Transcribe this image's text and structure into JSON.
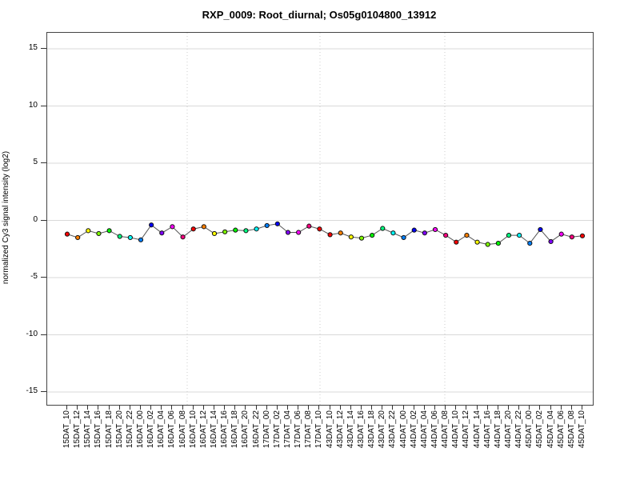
{
  "page": {
    "background": "#ffffff"
  },
  "chart_data": {
    "type": "line",
    "title": "RXP_0009: Root_diurnal; Os05g0104800_13912",
    "xlabel": "",
    "ylabel": "normalized Cy3 signal intensity (log2)",
    "ylim": [
      -16.4,
      16.4
    ],
    "yticks": [
      15,
      10,
      5,
      0,
      -5,
      -10,
      -15
    ],
    "legend_position": "none",
    "grid": {
      "horizontal_style": "solid",
      "horizontal_color": "#d9d9d9",
      "vertical_separator_style": "dotted",
      "vertical_separator_color": "#cccccc",
      "vertical_separator_fractions": [
        0.2566,
        0.5,
        0.7287
      ]
    },
    "line_color": "#555555",
    "marker": {
      "shape": "circle",
      "radius": 2.6,
      "stroke": "#111111"
    },
    "time_color_cycle": {
      "_10": "#FF0000",
      "_12": "#FF8000",
      "_14": "#FFFF00",
      "_16": "#80FF00",
      "_18": "#00FF00",
      "_20": "#00FF80",
      "_22": "#00FFFF",
      "_00": "#0080FF",
      "_02": "#0000FF",
      "_04": "#8000FF",
      "_06": "#FF00FF",
      "_08": "#FF0080"
    },
    "categories": [
      "15DAT_10",
      "15DAT_12",
      "15DAT_14",
      "15DAT_16",
      "15DAT_18",
      "15DAT_20",
      "15DAT_22",
      "16DAT_00",
      "16DAT_02",
      "16DAT_04",
      "16DAT_06",
      "16DAT_08",
      "16DAT_10",
      "16DAT_12",
      "16DAT_14",
      "16DAT_16",
      "16DAT_18",
      "16DAT_20",
      "16DAT_22",
      "17DAT_00",
      "17DAT_02",
      "17DAT_04",
      "17DAT_06",
      "17DAT_08",
      "17DAT_10",
      "43DAT_10",
      "43DAT_12",
      "43DAT_14",
      "43DAT_16",
      "43DAT_18",
      "43DAT_20",
      "43DAT_22",
      "44DAT_00",
      "44DAT_02",
      "44DAT_04",
      "44DAT_06",
      "44DAT_08",
      "44DAT_10",
      "44DAT_12",
      "44DAT_14",
      "44DAT_16",
      "44DAT_18",
      "44DAT_20",
      "44DAT_22",
      "45DAT_00",
      "45DAT_02",
      "45DAT_04",
      "45DAT_06",
      "45DAT_08",
      "45DAT_10"
    ],
    "values": [
      -1.2,
      -1.5,
      -0.9,
      -1.15,
      -0.9,
      -1.4,
      -1.5,
      -1.7,
      -0.4,
      -1.1,
      -0.55,
      -1.45,
      -0.75,
      -0.55,
      -1.15,
      -1.0,
      -0.85,
      -0.9,
      -0.75,
      -0.45,
      -0.3,
      -1.05,
      -1.05,
      -0.5,
      -0.75,
      -1.25,
      -1.1,
      -1.45,
      -1.55,
      -1.3,
      -0.7,
      -1.1,
      -1.5,
      -0.85,
      -1.1,
      -0.8,
      -1.3,
      -1.9,
      -1.3,
      -1.9,
      -2.1,
      -2.0,
      -1.3,
      -1.3,
      -2.0,
      -0.8,
      -1.85,
      -1.2,
      -1.45,
      -1.35
    ]
  }
}
